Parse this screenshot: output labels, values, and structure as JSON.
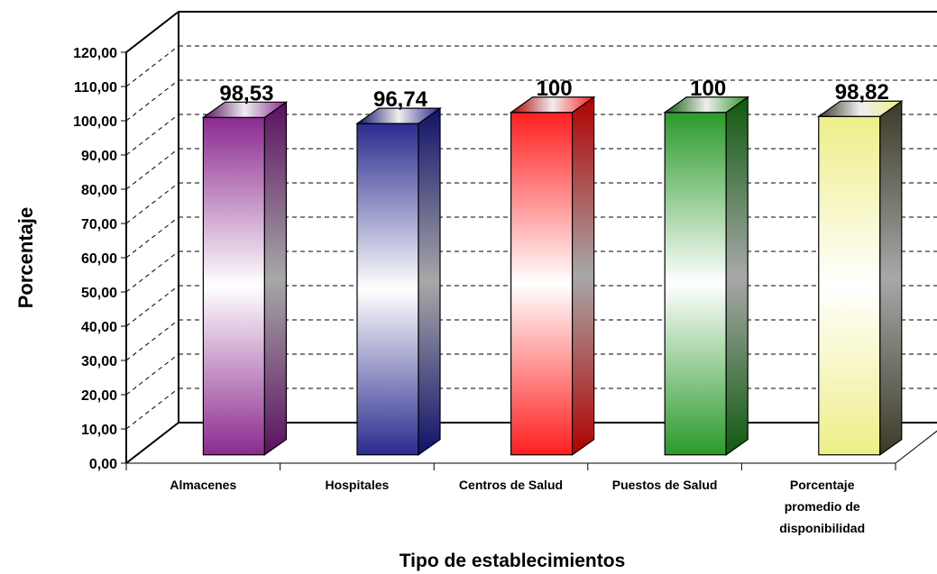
{
  "chart_data": {
    "type": "bar",
    "categories": [
      [
        "Almacenes"
      ],
      [
        "Hospitales"
      ],
      [
        "Centros de Salud"
      ],
      [
        "Puestos de Salud"
      ],
      [
        "Porcentaje",
        "promedio de",
        "disponibilidad"
      ]
    ],
    "values": [
      98.53,
      96.74,
      100,
      100,
      98.82
    ],
    "data_labels": [
      "98,53",
      "96,74",
      "100",
      "100",
      "98,82"
    ],
    "colors": [
      "#8b2a8f",
      "#2b2b8f",
      "#ff1f1f",
      "#2a9a2a",
      "#eeee88"
    ],
    "edge_colors": [
      "#5a1060",
      "#10106a",
      "#b00000",
      "#0e5a0e",
      "#3a3a28"
    ],
    "ylabel": "Porcentaje",
    "xlabel": "Tipo de establecimientos",
    "ylim": [
      0,
      120
    ],
    "ytick_step": 10,
    "ytick_labels": [
      "0,00",
      "10,00",
      "20,00",
      "30,00",
      "40,00",
      "50,00",
      "60,00",
      "70,00",
      "80,00",
      "90,00",
      "100,00",
      "110,00",
      "120,00"
    ],
    "grid": true,
    "style": "3d"
  }
}
